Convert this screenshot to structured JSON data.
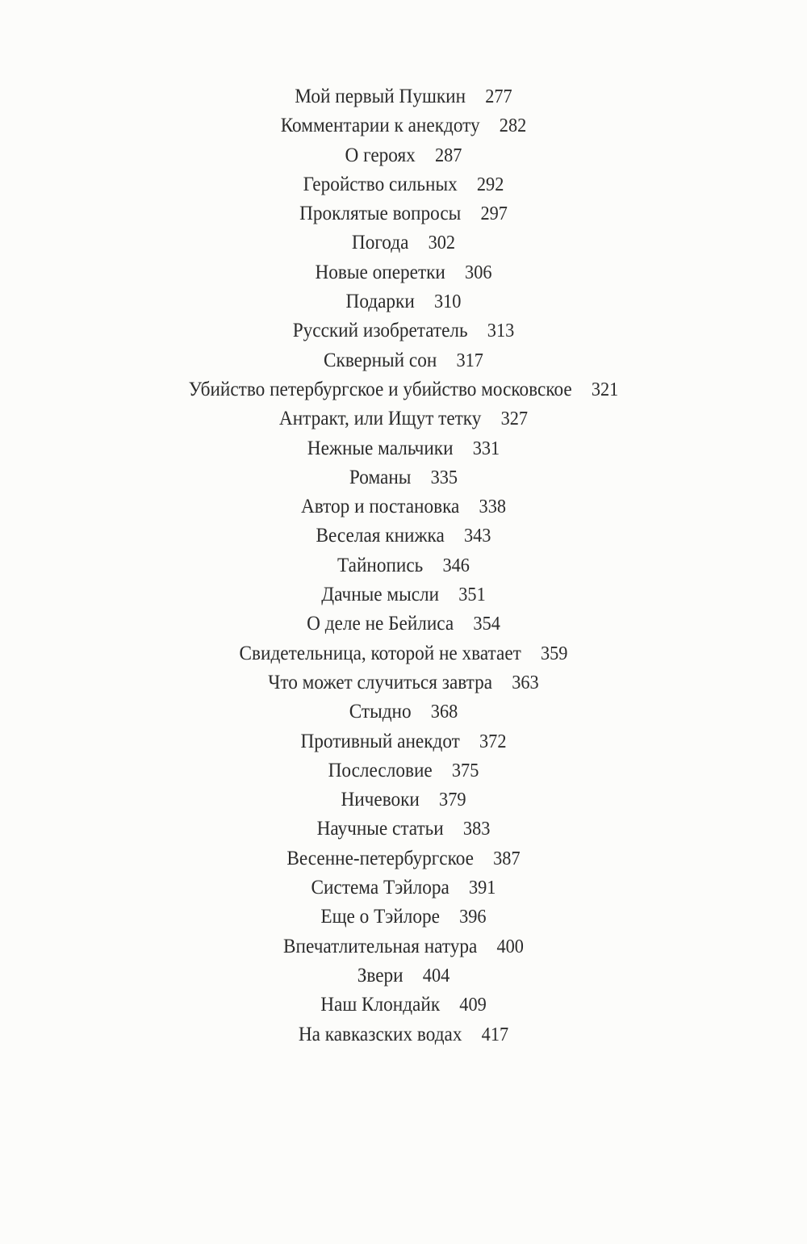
{
  "toc": {
    "entries": [
      {
        "title": "Мой первый Пушкин",
        "page": "277"
      },
      {
        "title": "Комментарии к анекдоту",
        "page": "282"
      },
      {
        "title": "О героях",
        "page": "287"
      },
      {
        "title": "Геройство сильных",
        "page": "292"
      },
      {
        "title": "Проклятые вопросы",
        "page": "297"
      },
      {
        "title": "Погода",
        "page": "302"
      },
      {
        "title": "Новые оперетки",
        "page": "306"
      },
      {
        "title": "Подарки",
        "page": "310"
      },
      {
        "title": "Русский изобретатель",
        "page": "313"
      },
      {
        "title": "Скверный сон",
        "page": "317"
      },
      {
        "title": "Убийство петербургское и убийство московское",
        "page": "321"
      },
      {
        "title": "Антракт, или Ищут тетку",
        "page": "327"
      },
      {
        "title": "Нежные мальчики",
        "page": "331"
      },
      {
        "title": "Романы",
        "page": "335"
      },
      {
        "title": "Автор и постановка",
        "page": "338"
      },
      {
        "title": "Веселая книжка",
        "page": "343"
      },
      {
        "title": "Тайнопись",
        "page": "346"
      },
      {
        "title": "Дачные мысли",
        "page": "351"
      },
      {
        "title": "О деле не Бейлиса",
        "page": "354"
      },
      {
        "title": "Свидетельница, которой не хватает",
        "page": "359"
      },
      {
        "title": "Что может случиться завтра",
        "page": "363"
      },
      {
        "title": "Стыдно",
        "page": "368"
      },
      {
        "title": "Противный анекдот",
        "page": "372"
      },
      {
        "title": "Послесловие",
        "page": "375"
      },
      {
        "title": "Ничевоки",
        "page": "379"
      },
      {
        "title": "Научные статьи",
        "page": "383"
      },
      {
        "title": "Весенне-петербургское",
        "page": "387"
      },
      {
        "title": "Система Тэйлора",
        "page": "391"
      },
      {
        "title": "Еще о Тэйлоре",
        "page": "396"
      },
      {
        "title": "Впечатлительная натура",
        "page": "400"
      },
      {
        "title": "Звери",
        "page": "404"
      },
      {
        "title": "Наш Клондайк",
        "page": "409"
      },
      {
        "title": "На кавказских водах",
        "page": "417"
      }
    ]
  }
}
